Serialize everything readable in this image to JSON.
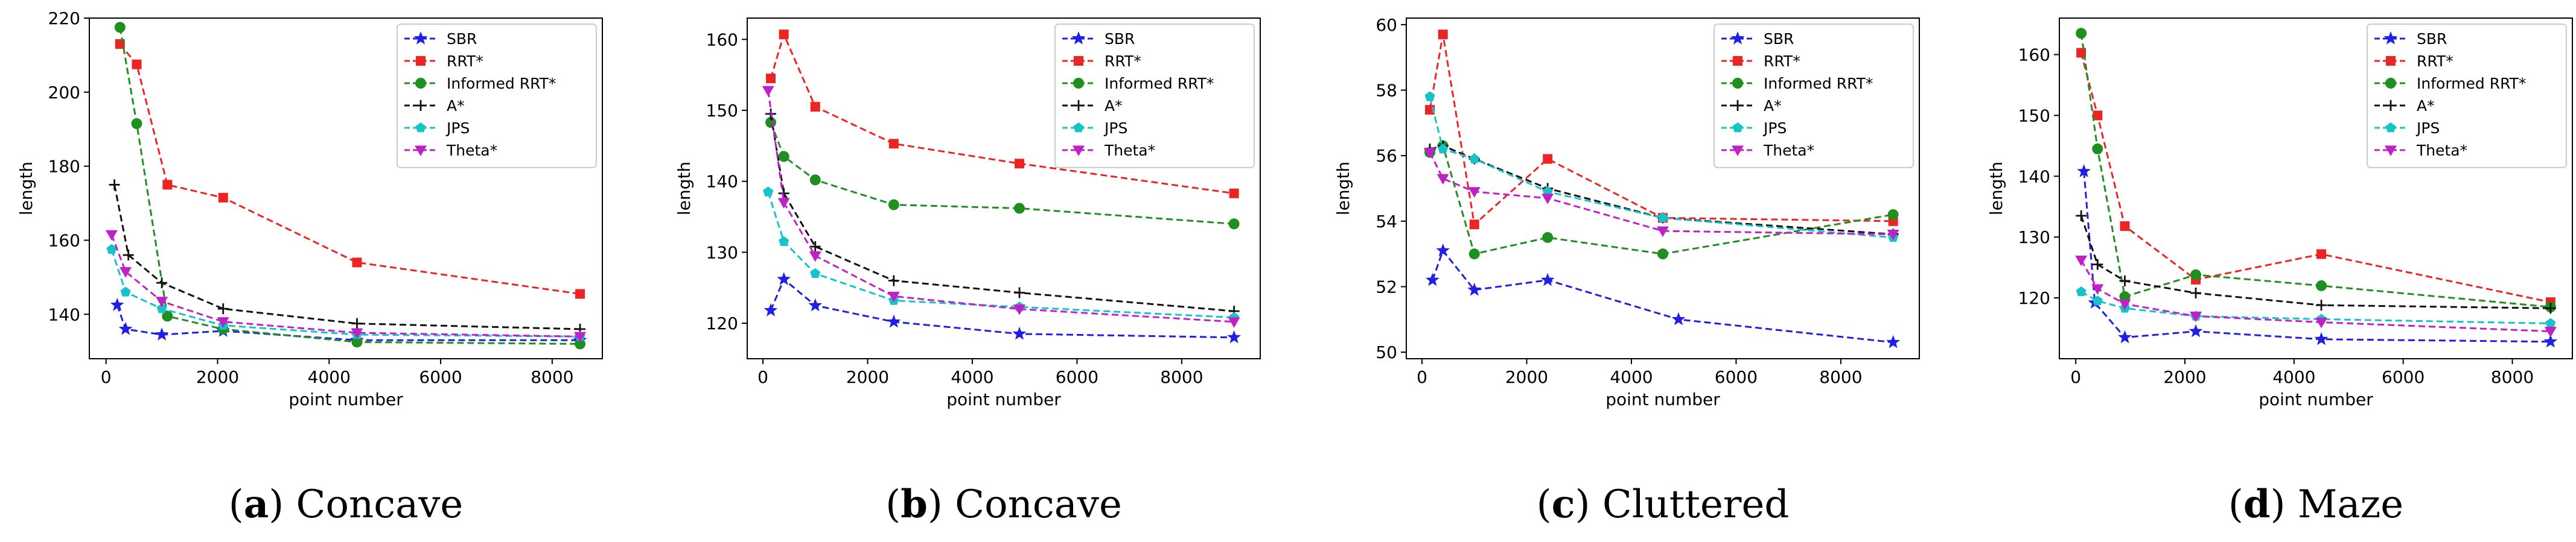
{
  "figure": {
    "series_styles": [
      {
        "name": "SBR",
        "color": "#1f1fe6",
        "marker": "star"
      },
      {
        "name": "RRT*",
        "color": "#ec2424",
        "marker": "square"
      },
      {
        "name": "Informed RRT*",
        "color": "#1f8f1f",
        "marker": "circle"
      },
      {
        "name": "A*",
        "color": "#111111",
        "marker": "plus"
      },
      {
        "name": "JPS",
        "color": "#17c3c8",
        "marker": "pentagon"
      },
      {
        "name": "Theta*",
        "color": "#c020c8",
        "marker": "triangle-down"
      }
    ]
  },
  "chart_data": [
    {
      "type": "line",
      "caption_letter": "a",
      "caption_name": "Concave",
      "xlabel": "point number",
      "ylabel": "length",
      "xlim": [
        -300,
        8900
      ],
      "ylim": [
        128,
        220
      ],
      "xticks": [
        0,
        2000,
        4000,
        6000,
        8000
      ],
      "yticks": [
        140,
        160,
        180,
        200,
        220
      ],
      "legend": "top-right",
      "series": [
        {
          "name": "SBR",
          "points": [
            [
              200,
              142.5
            ],
            [
              350,
              136
            ],
            [
              1000,
              134.5
            ],
            [
              2100,
              135.5
            ],
            [
              4500,
              133
            ],
            [
              8500,
              133
            ]
          ]
        },
        {
          "name": "RRT*",
          "points": [
            [
              250,
              213
            ],
            [
              550,
              207.5
            ],
            [
              1100,
              175
            ],
            [
              2100,
              171.5
            ],
            [
              4500,
              154
            ],
            [
              8500,
              145.5
            ]
          ]
        },
        {
          "name": "Informed RRT*",
          "points": [
            [
              250,
              217.5
            ],
            [
              550,
              191.5
            ],
            [
              1100,
              139.5
            ],
            [
              2100,
              136
            ],
            [
              4500,
              132.5
            ],
            [
              8500,
              132
            ]
          ]
        },
        {
          "name": "A*",
          "points": [
            [
              150,
              175
            ],
            [
              400,
              156
            ],
            [
              1000,
              148.5
            ],
            [
              2100,
              141.5
            ],
            [
              4500,
              137.5
            ],
            [
              8500,
              136
            ]
          ]
        },
        {
          "name": "JPS",
          "points": [
            [
              100,
              157.5
            ],
            [
              350,
              146
            ],
            [
              1000,
              141.5
            ],
            [
              2100,
              137
            ],
            [
              4500,
              134.5
            ],
            [
              8500,
              134
            ]
          ]
        },
        {
          "name": "Theta*",
          "points": [
            [
              100,
              161.5
            ],
            [
              350,
              151.5
            ],
            [
              1000,
              143.5
            ],
            [
              2100,
              138
            ],
            [
              4500,
              135
            ],
            [
              8500,
              134
            ]
          ]
        }
      ]
    },
    {
      "type": "line",
      "caption_letter": "b",
      "caption_name": "Concave",
      "xlabel": "point number",
      "ylabel": "length",
      "xlim": [
        -300,
        9500
      ],
      "ylim": [
        115,
        163
      ],
      "xticks": [
        0,
        2000,
        4000,
        6000,
        8000
      ],
      "yticks": [
        120,
        130,
        140,
        150,
        160
      ],
      "legend": "top-right",
      "series": [
        {
          "name": "SBR",
          "points": [
            [
              150,
              121.8
            ],
            [
              400,
              126.2
            ],
            [
              1000,
              122.5
            ],
            [
              2500,
              120.2
            ],
            [
              4900,
              118.5
            ],
            [
              9000,
              118
            ]
          ]
        },
        {
          "name": "RRT*",
          "points": [
            [
              150,
              154.5
            ],
            [
              400,
              160.7
            ],
            [
              1000,
              150.5
            ],
            [
              2500,
              145.3
            ],
            [
              4900,
              142.5
            ],
            [
              9000,
              138.3
            ]
          ]
        },
        {
          "name": "Informed RRT*",
          "points": [
            [
              150,
              148.3
            ],
            [
              400,
              143.5
            ],
            [
              1000,
              140.2
            ],
            [
              2500,
              136.7
            ],
            [
              4900,
              136.2
            ],
            [
              9000,
              134
            ]
          ]
        },
        {
          "name": "A*",
          "points": [
            [
              150,
              149.5
            ],
            [
              400,
              138.3
            ],
            [
              1000,
              130.8
            ],
            [
              2500,
              126
            ],
            [
              4900,
              124.3
            ],
            [
              9000,
              121.7
            ]
          ]
        },
        {
          "name": "JPS",
          "points": [
            [
              100,
              138.5
            ],
            [
              400,
              131.5
            ],
            [
              1000,
              127
            ],
            [
              2500,
              123.2
            ],
            [
              4900,
              122.3
            ],
            [
              9000,
              120.8
            ]
          ]
        },
        {
          "name": "Theta*",
          "points": [
            [
              100,
              152.8
            ],
            [
              400,
              137
            ],
            [
              1000,
              129.5
            ],
            [
              2500,
              123.8
            ],
            [
              4900,
              122
            ],
            [
              9000,
              120.2
            ]
          ]
        }
      ]
    },
    {
      "type": "line",
      "caption_letter": "c",
      "caption_name": "Cluttered",
      "xlabel": "point number",
      "ylabel": "length",
      "xlim": [
        -300,
        9500
      ],
      "ylim": [
        49.8,
        60.2
      ],
      "xticks": [
        0,
        2000,
        4000,
        6000,
        8000
      ],
      "yticks": [
        50,
        52,
        54,
        56,
        58,
        60
      ],
      "legend": "top-right",
      "series": [
        {
          "name": "SBR",
          "points": [
            [
              200,
              52.2
            ],
            [
              400,
              53.1
            ],
            [
              1000,
              51.9
            ],
            [
              2400,
              52.2
            ],
            [
              4900,
              51
            ],
            [
              9000,
              50.3
            ]
          ]
        },
        {
          "name": "RRT*",
          "points": [
            [
              150,
              57.4
            ],
            [
              400,
              59.7
            ],
            [
              1000,
              53.9
            ],
            [
              2400,
              55.9
            ],
            [
              4600,
              54.1
            ],
            [
              9000,
              54
            ]
          ]
        },
        {
          "name": "Informed RRT*",
          "points": [
            [
              150,
              56.1
            ],
            [
              400,
              56.3
            ],
            [
              1000,
              53
            ],
            [
              2400,
              53.5
            ],
            [
              4600,
              53
            ],
            [
              9000,
              54.2
            ]
          ]
        },
        {
          "name": "A*",
          "points": [
            [
              150,
              56.2
            ],
            [
              400,
              56.3
            ],
            [
              1000,
              55.9
            ],
            [
              2400,
              55
            ],
            [
              4600,
              54.1
            ],
            [
              9000,
              53.6
            ]
          ]
        },
        {
          "name": "JPS",
          "points": [
            [
              150,
              57.8
            ],
            [
              400,
              56.2
            ],
            [
              1000,
              55.9
            ],
            [
              2400,
              54.9
            ],
            [
              4600,
              54.1
            ],
            [
              9000,
              53.5
            ]
          ]
        },
        {
          "name": "Theta*",
          "points": [
            [
              150,
              56.1
            ],
            [
              400,
              55.3
            ],
            [
              1000,
              54.9
            ],
            [
              2400,
              54.7
            ],
            [
              4600,
              53.7
            ],
            [
              9000,
              53.6
            ]
          ]
        }
      ]
    },
    {
      "type": "line",
      "caption_letter": "d",
      "caption_name": "Maze",
      "xlabel": "point number",
      "ylabel": "length",
      "xlim": [
        -300,
        9100
      ],
      "ylim": [
        110,
        166
      ],
      "xticks": [
        0,
        2000,
        4000,
        6000,
        8000
      ],
      "yticks": [
        120,
        130,
        140,
        150,
        160
      ],
      "legend": "top-right",
      "series": [
        {
          "name": "SBR",
          "points": [
            [
              150,
              140.8
            ],
            [
              350,
              119.2
            ],
            [
              900,
              113.5
            ],
            [
              2200,
              114.5
            ],
            [
              4500,
              113.2
            ],
            [
              8700,
              112.8
            ]
          ]
        },
        {
          "name": "RRT*",
          "points": [
            [
              100,
              160.3
            ],
            [
              400,
              150
            ],
            [
              900,
              131.8
            ],
            [
              2200,
              123
            ],
            [
              4500,
              127.2
            ],
            [
              8700,
              119.3
            ]
          ]
        },
        {
          "name": "Informed RRT*",
          "points": [
            [
              100,
              163.5
            ],
            [
              400,
              144.5
            ],
            [
              900,
              120.2
            ],
            [
              2200,
              123.8
            ],
            [
              4500,
              122
            ],
            [
              8700,
              118.5
            ]
          ]
        },
        {
          "name": "A*",
          "points": [
            [
              100,
              133.5
            ],
            [
              400,
              125.5
            ],
            [
              900,
              122.8
            ],
            [
              2200,
              120.8
            ],
            [
              4500,
              118.8
            ],
            [
              8700,
              118.3
            ]
          ]
        },
        {
          "name": "JPS",
          "points": [
            [
              100,
              121
            ],
            [
              400,
              119.5
            ],
            [
              900,
              118.3
            ],
            [
              2200,
              117
            ],
            [
              4500,
              116.5
            ],
            [
              8700,
              115.8
            ]
          ]
        },
        {
          "name": "Theta*",
          "points": [
            [
              100,
              126.2
            ],
            [
              400,
              121.5
            ],
            [
              900,
              119
            ],
            [
              2200,
              117
            ],
            [
              4500,
              116
            ],
            [
              8700,
              114.5
            ]
          ]
        }
      ]
    }
  ]
}
